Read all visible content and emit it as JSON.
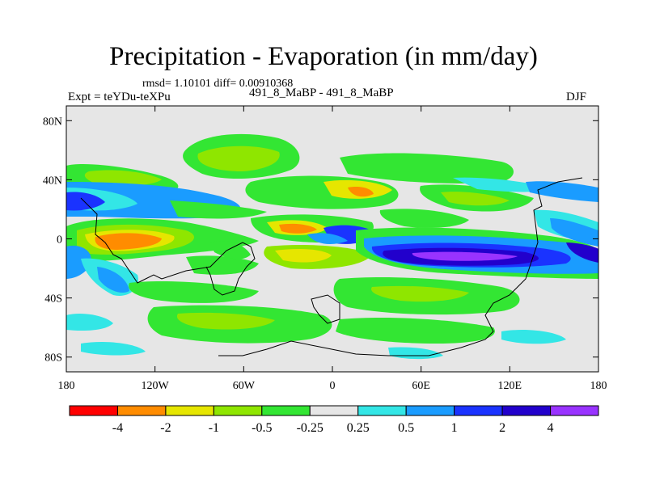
{
  "header": {
    "title": "Precipitation - Evaporation (in mm/day)",
    "stats": "rmsd= 1.10101 diff= 0.00910368",
    "experiment": "Expt = teYDu-teXPu",
    "subtitle": "491_8_MaBP - 491_8_MaBP",
    "season": "DJF"
  },
  "chart_data": {
    "type": "heatmap",
    "title": "Precipitation - Evaporation (in mm/day)",
    "x_axis": {
      "range": [
        -180,
        180
      ],
      "ticks": [
        -180,
        -120,
        -60,
        0,
        60,
        120,
        180
      ],
      "tick_labels": [
        "180",
        "120W",
        "60W",
        "0",
        "60E",
        "120E",
        "180"
      ]
    },
    "y_axis": {
      "range": [
        -90,
        90
      ],
      "ticks": [
        80,
        40,
        0,
        -40,
        -80
      ],
      "tick_labels": [
        "80N",
        "40N",
        "0",
        "40S",
        "80S"
      ]
    },
    "colorbar": {
      "colors": [
        "#ff0000",
        "#ff8c00",
        "#e6e600",
        "#8fe600",
        "#33e633",
        "#e6e6e6",
        "#33e6e6",
        "#1a9cff",
        "#1a33ff",
        "#2200cc",
        "#9933ff"
      ],
      "boundaries": [
        -4,
        -2,
        -1,
        -0.5,
        -0.25,
        0.25,
        0.5,
        1,
        2,
        4
      ],
      "boundary_labels": [
        "-4",
        "-2",
        "-1",
        "-0.5",
        "-0.25",
        "0.25",
        "0.5",
        "1",
        "2",
        "4"
      ]
    },
    "background_color": "#e6e6e6"
  }
}
